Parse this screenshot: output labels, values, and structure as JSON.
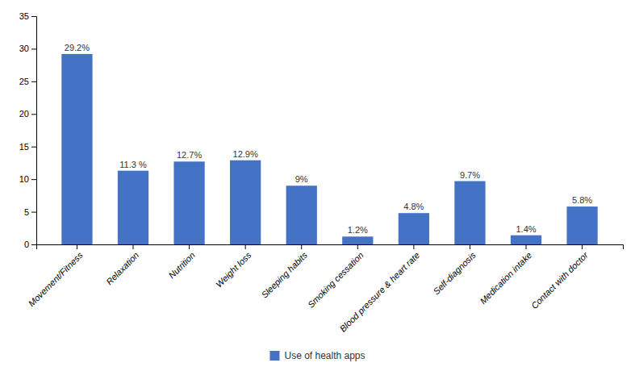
{
  "chart_data": {
    "type": "bar",
    "categories": [
      "Movement/Fitness",
      "Relaxation",
      "Nutrition",
      "Weight loss",
      "Sleeping habits",
      "Smoking cessation",
      "Blood pressure & heart rate",
      "Self-diagnosis",
      "Medication intake",
      "Contact with doctor"
    ],
    "series": [
      {
        "name": "Use of health apps",
        "color": "#4472C4",
        "values": [
          29.2,
          11.3,
          12.7,
          12.9,
          9.0,
          1.2,
          4.8,
          9.7,
          1.4,
          5.8
        ],
        "value_labels": [
          "29.2%",
          "11.3 %",
          "12.7%",
          "12.9%",
          "9%",
          "1.2%",
          "4.8%",
          "9.7%",
          "1.4%",
          "5.8%"
        ]
      }
    ],
    "ylim": [
      0,
      35
    ],
    "yticks": [
      0,
      5,
      10,
      15,
      20,
      25,
      30,
      35
    ],
    "data_labels": true,
    "grid": false,
    "legend": "bottom"
  }
}
